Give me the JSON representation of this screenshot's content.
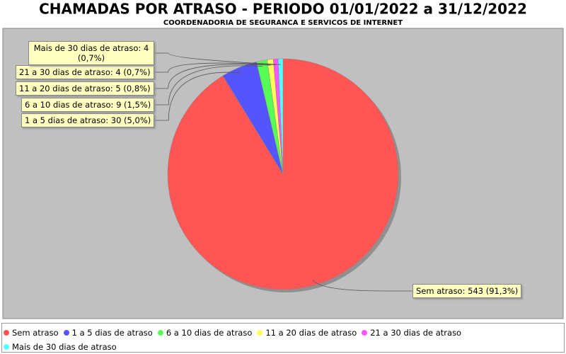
{
  "chart_data": {
    "type": "pie",
    "title": "CHAMADAS POR ATRASO - PERIODO 01/01/2022 a 31/12/2022",
    "subtitle": "COORDENADORIA DE SEGURANCA E SERVICOS DE INTERNET",
    "categories": [
      "Sem atraso",
      "1 a 5 dias de atraso",
      "6 a 10 dias de atraso",
      "11 a 20 dias de atraso",
      "21 a 30 dias de atraso",
      "Mais de 30 dias de atraso"
    ],
    "values": [
      543,
      30,
      9,
      5,
      4,
      4
    ],
    "value_labels": [
      "Sem atraso: 543 (91,3%)",
      "1 a 5 dias de atraso: 30 (5,0%)",
      "6 a 10 dias de atraso: 9 (1,5%)",
      "11 a 20 dias de atraso: 5 (0,8%)",
      "21 a 30 dias de atraso: 4 (0,7%)",
      "Mais de 30 dias de atraso: 4 (0,7%)"
    ],
    "colors": [
      "#ff5555",
      "#5555ff",
      "#55ff55",
      "#ffff55",
      "#ff55ff",
      "#55ffff"
    ],
    "legend": "bottom"
  }
}
